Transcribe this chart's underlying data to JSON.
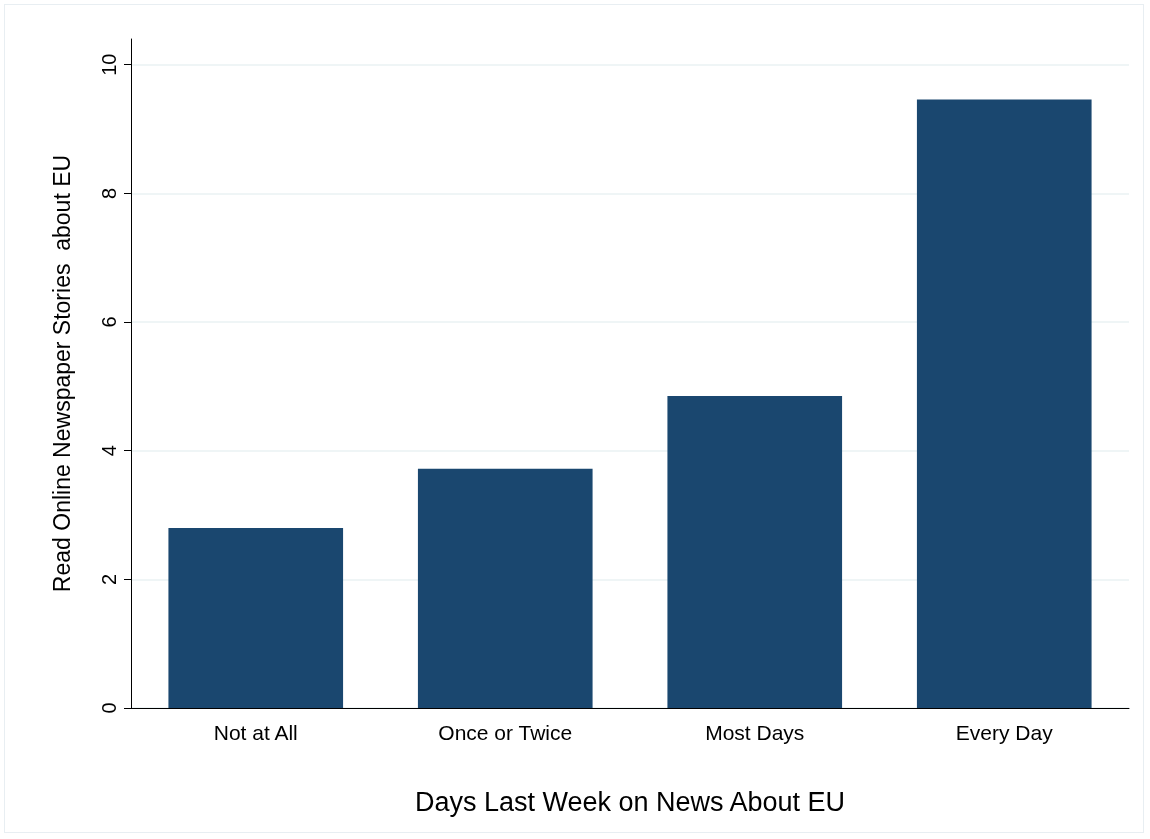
{
  "chart_data": {
    "type": "bar",
    "xlabel": "Days Last Week on News About EU",
    "ylabel": "Read Online Newspaper Stories  about EU",
    "categories": [
      "Not at All",
      "Once or Twice",
      "Most Days",
      "Every Day"
    ],
    "values": [
      2.8,
      3.72,
      4.85,
      9.46
    ],
    "color": "#1a476f",
    "ylim": [
      0,
      10.4
    ],
    "yticks": [
      0,
      2,
      4,
      6,
      8,
      10
    ],
    "grid": "y"
  }
}
